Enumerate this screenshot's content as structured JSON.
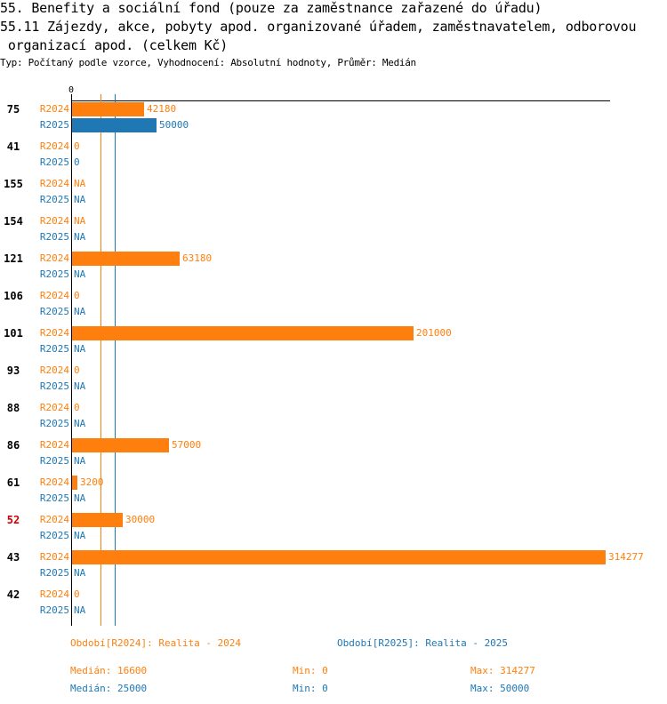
{
  "title_line1": "55. Benefity a sociální fond (pouze za zaměstnance zařazené do úřadu)",
  "title_line2": "55.11 Zájezdy, akce, pobyty apod. organizované úřadem, zaměstnavatelem, odborovou",
  "title_line3": " organizací apod. (celkem Kč)",
  "subtitle": "Typ: Počítaný podle vzorce, Vyhodnocení: Absolutní hodnoty, Průměr: Medián",
  "colors": {
    "r2024": "#ff7f0e",
    "r2025": "#1f77b4",
    "highlight": "#cc0000"
  },
  "chart_data": {
    "type": "bar",
    "orientation": "horizontal",
    "axis_zero_label": "0",
    "xlim": [
      0,
      314277
    ],
    "series_names": [
      "R2024",
      "R2025"
    ],
    "highlight_category": "52",
    "rows": [
      {
        "category": "75",
        "R2024": 42180,
        "R2025": 50000
      },
      {
        "category": "41",
        "R2024": 0,
        "R2025": 0
      },
      {
        "category": "155",
        "R2024": "NA",
        "R2025": "NA"
      },
      {
        "category": "154",
        "R2024": "NA",
        "R2025": "NA"
      },
      {
        "category": "121",
        "R2024": 63180,
        "R2025": "NA"
      },
      {
        "category": "106",
        "R2024": 0,
        "R2025": "NA"
      },
      {
        "category": "101",
        "R2024": 201000,
        "R2025": "NA"
      },
      {
        "category": "93",
        "R2024": 0,
        "R2025": "NA"
      },
      {
        "category": "88",
        "R2024": 0,
        "R2025": "NA"
      },
      {
        "category": "86",
        "R2024": 57000,
        "R2025": "NA"
      },
      {
        "category": "61",
        "R2024": 3200,
        "R2025": "NA"
      },
      {
        "category": "52",
        "R2024": 30000,
        "R2025": "NA"
      },
      {
        "category": "43",
        "R2024": 314277,
        "R2025": "NA"
      },
      {
        "category": "42",
        "R2024": 0,
        "R2025": "NA"
      }
    ],
    "median_lines": {
      "R2024": 16600,
      "R2025": 25000
    }
  },
  "legend": {
    "r2024_label": "Období[R2024]: Realita - 2024",
    "r2025_label": "Období[R2025]: Realita - 2025",
    "r2024_median": "Medián: 16600",
    "r2024_min": "Min: 0",
    "r2024_max": "Max: 314277",
    "r2025_median": "Medián: 25000",
    "r2025_min": "Min: 0",
    "r2025_max": "Max: 50000"
  }
}
